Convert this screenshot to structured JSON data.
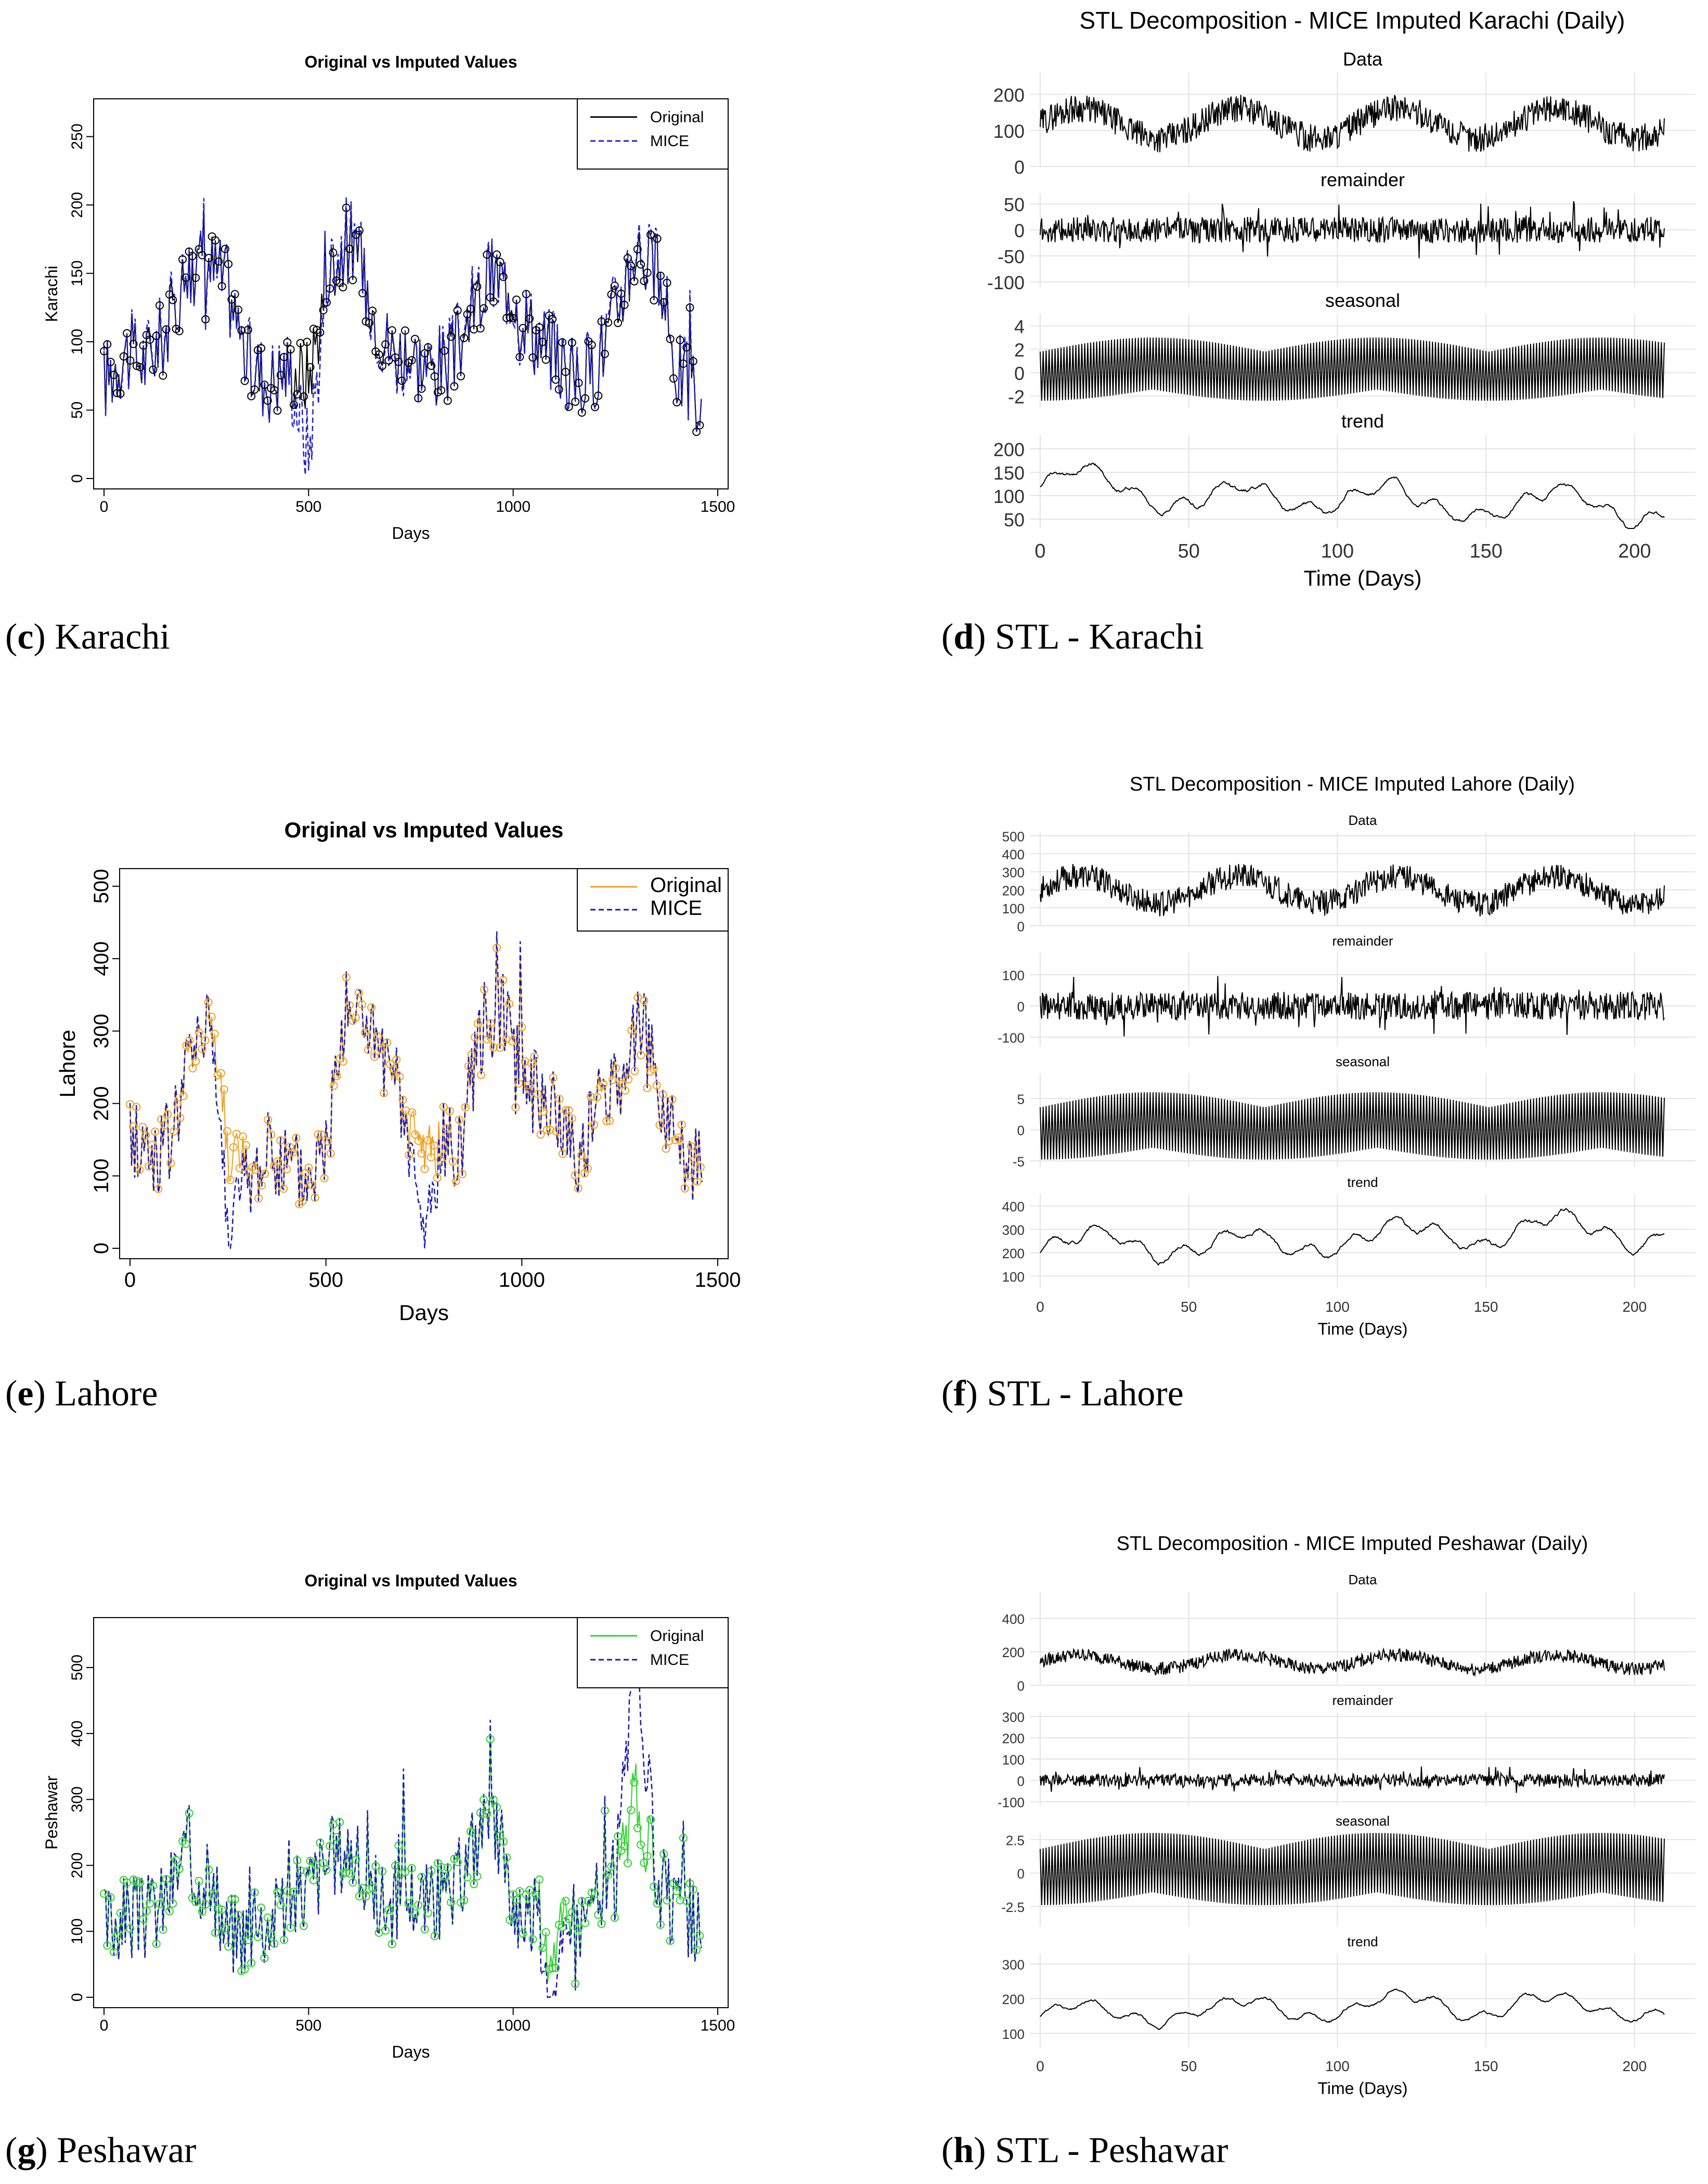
{
  "captions": [
    {
      "letter": "c",
      "text": "Karachi"
    },
    {
      "letter": "d",
      "text": "STL - Karachi"
    },
    {
      "letter": "e",
      "text": "Lahore"
    },
    {
      "letter": "f",
      "text": "STL - Lahore"
    },
    {
      "letter": "g",
      "text": "Peshawar"
    },
    {
      "letter": "h",
      "text": "STL - Peshawar"
    }
  ],
  "chart_data": [
    {
      "id": "karachi-imputed",
      "type": "line",
      "title": "Original vs Imputed Values",
      "xlabel": "Days",
      "ylabel": "Karachi",
      "xlim": [
        0,
        1500
      ],
      "ylim": [
        0,
        270
      ],
      "xticks": [
        0,
        500,
        1000,
        1500
      ],
      "yticks": [
        0,
        50,
        100,
        150,
        200,
        250
      ],
      "legend": {
        "position": "top-right",
        "entries": [
          {
            "label": "Original",
            "style": "solid",
            "color": "#000000"
          },
          {
            "label": "MICE",
            "style": "dashed",
            "color": "#2020d0"
          }
        ]
      },
      "colors": {
        "original": "#000000",
        "mice": "#2020d0",
        "points": "#000000"
      },
      "series": [
        {
          "name": "Original",
          "x": [
            0,
            50,
            100,
            150,
            200,
            250,
            300,
            350,
            400,
            450,
            500,
            550,
            600,
            650,
            700,
            750,
            800,
            850,
            900,
            950,
            1000,
            1050,
            1100,
            1150,
            1200,
            1250,
            1300,
            1350,
            1400,
            1450
          ],
          "values": [
            70,
            95,
            85,
            105,
            150,
            160,
            145,
            85,
            70,
            80,
            75,
            150,
            175,
            130,
            95,
            90,
            80,
            85,
            120,
            150,
            140,
            105,
            90,
            70,
            80,
            120,
            170,
            150,
            80,
            60
          ]
        },
        {
          "name": "MICE",
          "x": [
            0,
            50,
            100,
            150,
            200,
            250,
            300,
            350,
            400,
            450,
            500,
            550,
            600,
            650,
            700,
            750,
            800,
            850,
            900,
            950,
            1000,
            1050,
            1100,
            1150,
            1200,
            1250,
            1300,
            1350,
            1400,
            1450
          ],
          "values": [
            72,
            93,
            88,
            108,
            152,
            158,
            142,
            88,
            72,
            82,
            20,
            155,
            180,
            128,
            92,
            88,
            82,
            88,
            125,
            148,
            138,
            108,
            92,
            72,
            82,
            125,
            175,
            152,
            82,
            62
          ]
        }
      ]
    },
    {
      "id": "karachi-stl",
      "type": "line",
      "title": "STL Decomposition - MICE Imputed Karachi (Daily)",
      "xlabel": "Time (Days)",
      "xlim": [
        0,
        210
      ],
      "xticks": [
        0,
        50,
        100,
        150,
        200
      ],
      "facets": [
        {
          "label": "Data",
          "yticks": [
            0,
            100,
            200
          ],
          "ylim": [
            0,
            260
          ],
          "base": 120,
          "amp": 60
        },
        {
          "label": "remainder",
          "yticks": [
            -100,
            -50,
            0,
            50
          ],
          "ylim": [
            -110,
            70
          ],
          "base": 0,
          "amp": 25
        },
        {
          "label": "seasonal",
          "yticks": [
            -2,
            0,
            2,
            4
          ],
          "ylim": [
            -3,
            5
          ],
          "base": 0,
          "amp": 3
        },
        {
          "label": "trend",
          "yticks": [
            50,
            100,
            150,
            200
          ],
          "ylim": [
            30,
            230
          ],
          "base": 120,
          "amp": 50
        }
      ]
    },
    {
      "id": "lahore-imputed",
      "type": "line",
      "title": "Original vs Imputed Values",
      "xlabel": "Days",
      "ylabel": "Lahore",
      "xlim": [
        0,
        1500
      ],
      "ylim": [
        0,
        510
      ],
      "xticks": [
        0,
        500,
        1000,
        1500
      ],
      "yticks": [
        0,
        100,
        200,
        300,
        400,
        500
      ],
      "legend": {
        "position": "top-right",
        "entries": [
          {
            "label": "Original",
            "style": "solid",
            "color": "#f0a020"
          },
          {
            "label": "MICE",
            "style": "dashed",
            "color": "#1a1ab0"
          }
        ]
      },
      "colors": {
        "original": "#f0a020",
        "mice": "#1a1ab0",
        "points": "#f0a020"
      },
      "series": [
        {
          "name": "Original",
          "x": [
            0,
            50,
            100,
            150,
            200,
            250,
            300,
            350,
            400,
            450,
            500,
            550,
            600,
            650,
            700,
            750,
            800,
            850,
            900,
            950,
            1000,
            1050,
            1100,
            1150,
            1200,
            1250,
            1300,
            1350,
            1400,
            1450
          ],
          "values": [
            160,
            130,
            140,
            250,
            330,
            150,
            90,
            120,
            110,
            90,
            140,
            330,
            320,
            240,
            170,
            130,
            140,
            150,
            300,
            340,
            250,
            200,
            170,
            130,
            200,
            230,
            320,
            200,
            150,
            110
          ]
        },
        {
          "name": "MICE",
          "x": [
            0,
            50,
            100,
            150,
            200,
            250,
            300,
            350,
            400,
            450,
            500,
            550,
            600,
            650,
            700,
            750,
            800,
            850,
            900,
            950,
            1000,
            1050,
            1100,
            1150,
            1200,
            1250,
            1300,
            1350,
            1400,
            1450
          ],
          "values": [
            158,
            128,
            142,
            255,
            335,
            40,
            88,
            122,
            112,
            88,
            142,
            335,
            318,
            238,
            172,
            10,
            142,
            152,
            305,
            345,
            252,
            205,
            172,
            128,
            205,
            235,
            325,
            205,
            152,
            108
          ]
        }
      ]
    },
    {
      "id": "lahore-stl",
      "type": "line",
      "title": "STL Decomposition - MICE Imputed Lahore (Daily)",
      "xlabel": "Time (Days)",
      "xlim": [
        0,
        210
      ],
      "xticks": [
        0,
        50,
        100,
        150,
        200
      ],
      "facets": [
        {
          "label": "Data",
          "yticks": [
            0,
            100,
            200,
            300,
            400,
            500
          ],
          "ylim": [
            0,
            520
          ],
          "base": 200,
          "amp": 110
        },
        {
          "label": "remainder",
          "yticks": [
            -100,
            0,
            100
          ],
          "ylim": [
            -130,
            170
          ],
          "base": 0,
          "amp": 45
        },
        {
          "label": "seasonal",
          "yticks": [
            -5,
            0,
            5
          ],
          "ylim": [
            -6,
            9
          ],
          "base": 0,
          "amp": 6
        },
        {
          "label": "trend",
          "yticks": [
            100,
            200,
            300,
            400
          ],
          "ylim": [
            50,
            450
          ],
          "base": 200,
          "amp": 100
        }
      ]
    },
    {
      "id": "peshawar-imputed",
      "type": "line",
      "title": "Original vs Imputed Values",
      "xlabel": "Days",
      "ylabel": "Peshawar",
      "xlim": [
        0,
        1500
      ],
      "ylim": [
        0,
        560
      ],
      "xticks": [
        0,
        500,
        1000,
        1500
      ],
      "yticks": [
        0,
        100,
        200,
        300,
        400,
        500
      ],
      "legend": {
        "position": "top-right",
        "entries": [
          {
            "label": "Original",
            "style": "solid",
            "color": "#30d030"
          },
          {
            "label": "MICE",
            "style": "dashed",
            "color": "#1a1ab0"
          }
        ]
      },
      "colors": {
        "original": "#30d030",
        "mice": "#1a1ab0",
        "points": "#30d030"
      },
      "series": [
        {
          "name": "Original",
          "x": [
            0,
            50,
            100,
            150,
            200,
            250,
            300,
            350,
            400,
            450,
            500,
            550,
            600,
            650,
            700,
            750,
            800,
            850,
            900,
            950,
            1000,
            1050,
            1100,
            1150,
            1200,
            1250,
            1300,
            1350,
            1400,
            1450
          ],
          "values": [
            110,
            130,
            120,
            150,
            220,
            170,
            100,
            100,
            120,
            140,
            170,
            210,
            230,
            150,
            140,
            160,
            140,
            150,
            230,
            260,
            140,
            130,
            90,
            110,
            140,
            180,
            300,
            180,
            120,
            110
          ]
        },
        {
          "name": "MICE",
          "x": [
            0,
            50,
            100,
            150,
            200,
            250,
            300,
            350,
            400,
            450,
            500,
            550,
            600,
            650,
            700,
            750,
            800,
            850,
            900,
            950,
            1000,
            1050,
            1100,
            1150,
            1200,
            1250,
            1300,
            1350,
            1400,
            1450
          ],
          "values": [
            112,
            128,
            122,
            152,
            225,
            168,
            102,
            102,
            118,
            142,
            172,
            212,
            232,
            152,
            142,
            162,
            142,
            152,
            235,
            262,
            142,
            128,
            20,
            112,
            142,
            182,
            540,
            182,
            122,
            112
          ]
        }
      ]
    },
    {
      "id": "peshawar-stl",
      "type": "line",
      "title": "STL Decomposition - MICE Imputed Peshawar (Daily)",
      "xlabel": "Time (Days)",
      "xlim": [
        0,
        210
      ],
      "xticks": [
        0,
        50,
        100,
        150,
        200
      ],
      "facets": [
        {
          "label": "Data",
          "yticks": [
            0,
            200,
            400
          ],
          "ylim": [
            0,
            560
          ],
          "base": 140,
          "amp": 60
        },
        {
          "label": "remainder",
          "yticks": [
            -100,
            0,
            100,
            200,
            300
          ],
          "ylim": [
            -120,
            320
          ],
          "base": 0,
          "amp": 30
        },
        {
          "label": "seasonal",
          "yticks": [
            -2.5,
            0.0,
            2.5
          ],
          "ylim": [
            -4,
            3
          ],
          "base": 0,
          "amp": 3
        },
        {
          "label": "trend",
          "yticks": [
            100,
            200,
            300
          ],
          "ylim": [
            60,
            330
          ],
          "base": 150,
          "amp": 50
        }
      ]
    }
  ]
}
